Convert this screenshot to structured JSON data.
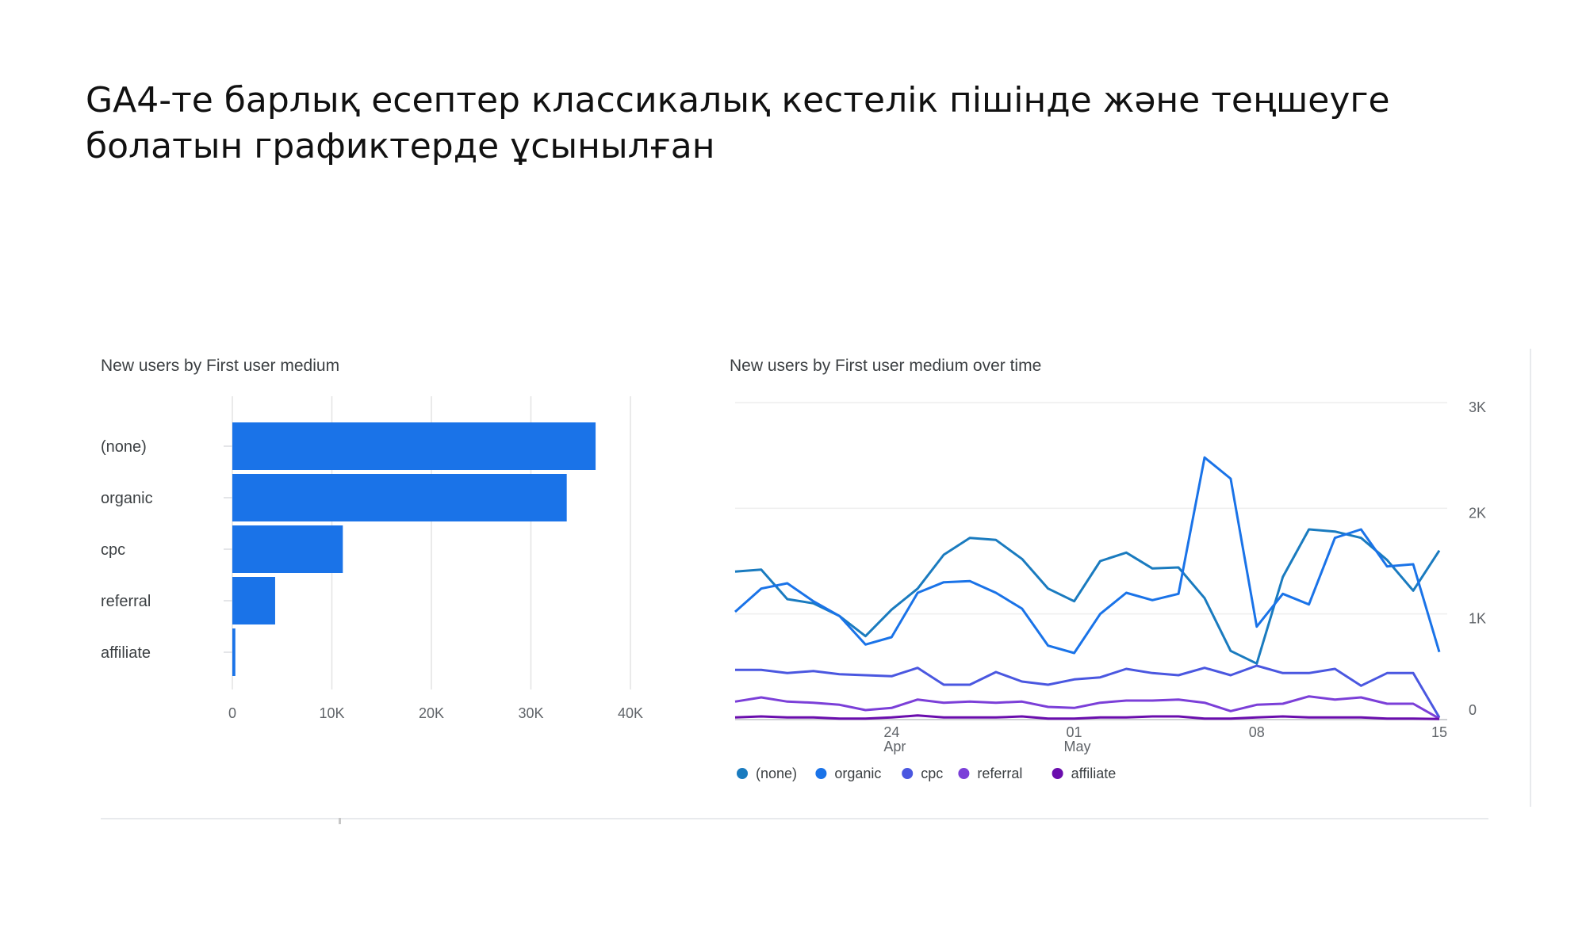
{
  "slide": {
    "title_line1": "GA4-те барлық есептер классикалық кестелік пішінде және теңшеуге",
    "title_line2": "болатын графиктерде ұсынылған"
  },
  "chart_data": [
    {
      "type": "bar",
      "title": "New users by First user medium",
      "orientation": "horizontal",
      "categories": [
        "(none)",
        "organic",
        "cpc",
        "referral",
        "affiliate"
      ],
      "values": [
        36500,
        33600,
        11100,
        4300,
        300
      ],
      "xlim": [
        0,
        40000
      ],
      "xticks": [
        0,
        10000,
        20000,
        30000,
        40000
      ],
      "xtick_labels": [
        "0",
        "10K",
        "20K",
        "30K",
        "40K"
      ],
      "grid": true,
      "color": "#1a73e8"
    },
    {
      "type": "line",
      "title": "New users by First user medium over time",
      "ylim": [
        0,
        3000
      ],
      "yticks": [
        0,
        1000,
        2000,
        3000
      ],
      "ytick_labels": [
        "0",
        "1K",
        "2K",
        "3K"
      ],
      "x_dates": [
        "Apr 18",
        "Apr 19",
        "Apr 20",
        "Apr 21",
        "Apr 22",
        "Apr 23",
        "Apr 24",
        "Apr 25",
        "Apr 26",
        "Apr 27",
        "Apr 28",
        "Apr 29",
        "Apr 30",
        "May 01",
        "May 02",
        "May 03",
        "May 04",
        "May 05",
        "May 06",
        "May 07",
        "May 08",
        "May 09",
        "May 10",
        "May 11",
        "May 12",
        "May 13",
        "May 14",
        "May 15"
      ],
      "xtick_positions": [
        6,
        13,
        20,
        27
      ],
      "xtick_labels": [
        {
          "day": "24",
          "month": "Apr"
        },
        {
          "day": "01",
          "month": "May"
        },
        {
          "day": "08",
          "month": ""
        },
        {
          "day": "15",
          "month": ""
        }
      ],
      "legend_position": "bottom-left",
      "grid": true,
      "series": [
        {
          "name": "(none)",
          "color": "#1a7bbf",
          "values": [
            1400,
            1420,
            1140,
            1100,
            980,
            790,
            1040,
            1240,
            1560,
            1720,
            1700,
            1520,
            1240,
            1120,
            1500,
            1580,
            1430,
            1440,
            1150,
            650,
            530,
            1350,
            1800,
            1780,
            1720,
            1510,
            1220,
            1600
          ]
        },
        {
          "name": "organic",
          "color": "#1a73e8",
          "values": [
            1020,
            1240,
            1290,
            1120,
            980,
            710,
            780,
            1200,
            1300,
            1310,
            1200,
            1050,
            700,
            630,
            1000,
            1200,
            1130,
            1190,
            2480,
            2280,
            880,
            1190,
            1090,
            1720,
            1800,
            1450,
            1470,
            640
          ]
        },
        {
          "name": "cpc",
          "color": "#4a57e0",
          "values": [
            470,
            470,
            440,
            460,
            430,
            420,
            410,
            490,
            330,
            330,
            450,
            360,
            330,
            380,
            400,
            480,
            440,
            420,
            490,
            420,
            510,
            440,
            440,
            480,
            320,
            440,
            440,
            20
          ]
        },
        {
          "name": "referral",
          "color": "#7b3fd8",
          "values": [
            170,
            210,
            170,
            160,
            140,
            90,
            110,
            190,
            160,
            170,
            160,
            170,
            120,
            110,
            160,
            180,
            180,
            190,
            160,
            80,
            140,
            150,
            220,
            190,
            210,
            150,
            150,
            10
          ]
        },
        {
          "name": "affiliate",
          "color": "#6a0dad",
          "values": [
            20,
            30,
            20,
            20,
            10,
            10,
            20,
            40,
            20,
            20,
            20,
            30,
            10,
            10,
            20,
            20,
            30,
            30,
            10,
            10,
            20,
            30,
            20,
            20,
            20,
            10,
            10,
            5
          ]
        }
      ]
    }
  ]
}
